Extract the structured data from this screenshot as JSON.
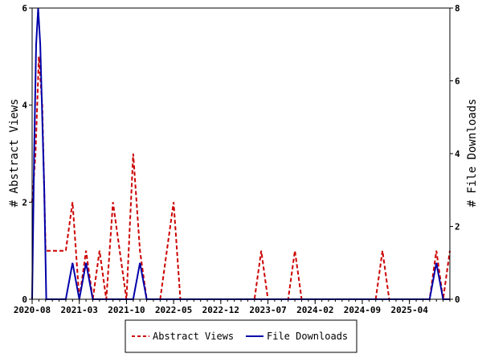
{
  "chart_data": {
    "type": "line",
    "x_labels": [
      "2020-08",
      "2021-03",
      "2021-10",
      "2022-05",
      "2022-12",
      "2023-07",
      "2024-02",
      "2024-09",
      "2025-04"
    ],
    "y_left": {
      "label": "# Abstract Views",
      "range": [
        0,
        6
      ],
      "ticks": [
        0,
        2,
        4,
        6
      ]
    },
    "y_right": {
      "label": "# File Downloads",
      "range": [
        0,
        8
      ],
      "ticks": [
        0,
        2,
        4,
        6,
        8
      ]
    },
    "x_range": [
      0,
      62
    ],
    "x_label_positions": [
      0,
      7,
      14,
      21,
      28,
      35,
      42,
      49,
      56
    ],
    "series": [
      {
        "name": "Abstract Views",
        "axis": "left",
        "color": "#cc0000",
        "style": "dashed",
        "points": [
          [
            0,
            2
          ],
          [
            0.5,
            3
          ],
          [
            1,
            5
          ],
          [
            1.5,
            4
          ],
          [
            2,
            1
          ],
          [
            3,
            1
          ],
          [
            4,
            1
          ],
          [
            5,
            1
          ],
          [
            6,
            2
          ],
          [
            7,
            0
          ],
          [
            8,
            1
          ],
          [
            9,
            0
          ],
          [
            10,
            1
          ],
          [
            11,
            0
          ],
          [
            12,
            2
          ],
          [
            13,
            1
          ],
          [
            14,
            0
          ],
          [
            15,
            3
          ],
          [
            16,
            1
          ],
          [
            17,
            0
          ],
          [
            18,
            0
          ],
          [
            19,
            0
          ],
          [
            20,
            1
          ],
          [
            21,
            2
          ],
          [
            22,
            0
          ],
          [
            23,
            0
          ],
          [
            24,
            0
          ],
          [
            25,
            0
          ],
          [
            26,
            0
          ],
          [
            27,
            0
          ],
          [
            28,
            0
          ],
          [
            29,
            0
          ],
          [
            30,
            0
          ],
          [
            31,
            0
          ],
          [
            32,
            0
          ],
          [
            33,
            0
          ],
          [
            34,
            1
          ],
          [
            35,
            0
          ],
          [
            36,
            0
          ],
          [
            37,
            0
          ],
          [
            38,
            0
          ],
          [
            39,
            1
          ],
          [
            40,
            0
          ],
          [
            41,
            0
          ],
          [
            42,
            0
          ],
          [
            43,
            0
          ],
          [
            44,
            0
          ],
          [
            45,
            0
          ],
          [
            46,
            0
          ],
          [
            47,
            0
          ],
          [
            48,
            0
          ],
          [
            49,
            0
          ],
          [
            50,
            0
          ],
          [
            51,
            0
          ],
          [
            52,
            1
          ],
          [
            53,
            0
          ],
          [
            54,
            0
          ],
          [
            55,
            0
          ],
          [
            56,
            0
          ],
          [
            57,
            0
          ],
          [
            58,
            0
          ],
          [
            59,
            0
          ],
          [
            60,
            1
          ],
          [
            61,
            0
          ],
          [
            62,
            1
          ]
        ]
      },
      {
        "name": "File Downloads",
        "axis": "right",
        "color": "#0000aa",
        "style": "solid",
        "points": [
          [
            0,
            0
          ],
          [
            0.3,
            4
          ],
          [
            0.6,
            7
          ],
          [
            0.9,
            8
          ],
          [
            1.2,
            7
          ],
          [
            1.5,
            5
          ],
          [
            1.8,
            3
          ],
          [
            2.1,
            0
          ],
          [
            3,
            0
          ],
          [
            4,
            0
          ],
          [
            5,
            0
          ],
          [
            6,
            1
          ],
          [
            7,
            0
          ],
          [
            8,
            1
          ],
          [
            9,
            0
          ],
          [
            10,
            0
          ],
          [
            11,
            0
          ],
          [
            12,
            0
          ],
          [
            13,
            0
          ],
          [
            14,
            0
          ],
          [
            15,
            0
          ],
          [
            16,
            1
          ],
          [
            17,
            0
          ],
          [
            18,
            0
          ],
          [
            19,
            0
          ],
          [
            20,
            0
          ],
          [
            21,
            0
          ],
          [
            22,
            0
          ],
          [
            23,
            0
          ],
          [
            24,
            0
          ],
          [
            25,
            0
          ],
          [
            26,
            0
          ],
          [
            27,
            0
          ],
          [
            28,
            0
          ],
          [
            29,
            0
          ],
          [
            30,
            0
          ],
          [
            31,
            0
          ],
          [
            32,
            0
          ],
          [
            33,
            0
          ],
          [
            34,
            0
          ],
          [
            35,
            0
          ],
          [
            36,
            0
          ],
          [
            37,
            0
          ],
          [
            38,
            0
          ],
          [
            39,
            0
          ],
          [
            40,
            0
          ],
          [
            41,
            0
          ],
          [
            42,
            0
          ],
          [
            43,
            0
          ],
          [
            44,
            0
          ],
          [
            45,
            0
          ],
          [
            46,
            0
          ],
          [
            47,
            0
          ],
          [
            48,
            0
          ],
          [
            49,
            0
          ],
          [
            50,
            0
          ],
          [
            51,
            0
          ],
          [
            52,
            0
          ],
          [
            53,
            0
          ],
          [
            54,
            0
          ],
          [
            55,
            0
          ],
          [
            56,
            0
          ],
          [
            57,
            0
          ],
          [
            58,
            0
          ],
          [
            59,
            0
          ],
          [
            60,
            1
          ],
          [
            61,
            0
          ],
          [
            62,
            0
          ]
        ]
      }
    ],
    "grid": false,
    "legend_position": "bottom-center"
  }
}
